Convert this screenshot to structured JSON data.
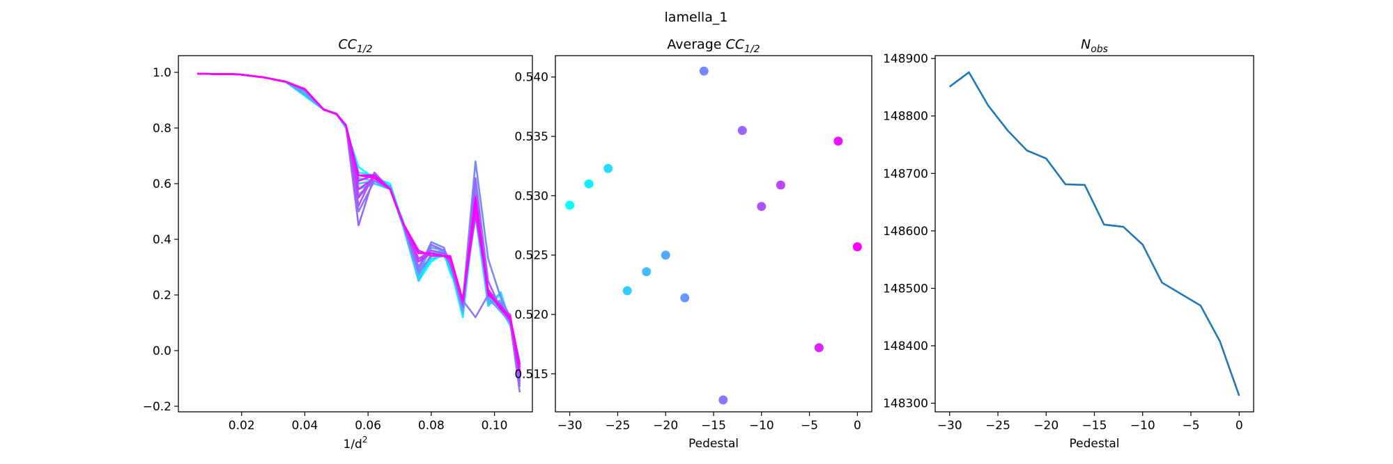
{
  "figure": {
    "suptitle": "lamella_1"
  },
  "chart_data": [
    {
      "type": "line",
      "title": "CC",
      "title_subscript": "1/2",
      "title_italic": true,
      "xlabel": "1/d",
      "xlabel_superscript": "2",
      "ylabel": "",
      "xlim": [
        0.0,
        0.112
      ],
      "ylim": [
        -0.22,
        1.06
      ],
      "xticks": [
        0.02,
        0.04,
        0.06,
        0.08,
        0.1
      ],
      "xtick_labels": [
        "0.02",
        "0.04",
        "0.06",
        "0.08",
        "0.10"
      ],
      "yticks": [
        -0.2,
        0.0,
        0.2,
        0.4,
        0.6,
        0.8,
        1.0
      ],
      "ytick_labels": [
        "−0.2",
        "0.0",
        "0.2",
        "0.4",
        "0.6",
        "0.8",
        "1.0"
      ],
      "colormap": "cool",
      "grid": false,
      "x": [
        0.006,
        0.019,
        0.027,
        0.034,
        0.04,
        0.046,
        0.05,
        0.053,
        0.057,
        0.062,
        0.067,
        0.071,
        0.076,
        0.08,
        0.084,
        0.086,
        0.09,
        0.094,
        0.098,
        0.102,
        0.105,
        0.108
      ],
      "series": [
        {
          "label": "-30",
          "values": [
            0.995,
            0.993,
            0.982,
            0.965,
            0.915,
            0.865,
            0.85,
            0.8,
            0.66,
            0.62,
            0.6,
            0.46,
            0.25,
            0.32,
            0.35,
            0.28,
            0.18,
            0.48,
            0.17,
            0.2,
            0.11,
            -0.04
          ]
        },
        {
          "label": "-28",
          "values": [
            0.995,
            0.993,
            0.982,
            0.966,
            0.92,
            0.866,
            0.852,
            0.8,
            0.64,
            0.63,
            0.59,
            0.45,
            0.26,
            0.33,
            0.34,
            0.3,
            0.12,
            0.52,
            0.2,
            0.15,
            0.09,
            -0.06
          ]
        },
        {
          "label": "-26",
          "values": [
            0.995,
            0.993,
            0.982,
            0.965,
            0.918,
            0.866,
            0.85,
            0.81,
            0.62,
            0.61,
            0.58,
            0.47,
            0.27,
            0.34,
            0.36,
            0.29,
            0.19,
            0.49,
            0.16,
            0.21,
            0.1,
            -0.05
          ]
        },
        {
          "label": "-24",
          "values": [
            0.995,
            0.993,
            0.982,
            0.966,
            0.925,
            0.868,
            0.851,
            0.8,
            0.58,
            0.6,
            0.58,
            0.45,
            0.25,
            0.35,
            0.36,
            0.3,
            0.15,
            0.54,
            0.18,
            0.15,
            0.1,
            -0.08
          ]
        },
        {
          "label": "-22",
          "values": [
            0.995,
            0.993,
            0.982,
            0.967,
            0.93,
            0.867,
            0.852,
            0.805,
            0.6,
            0.61,
            0.585,
            0.45,
            0.27,
            0.38,
            0.36,
            0.31,
            0.17,
            0.56,
            0.17,
            0.18,
            0.12,
            -0.1
          ]
        },
        {
          "label": "-20",
          "values": [
            0.995,
            0.993,
            0.982,
            0.966,
            0.92,
            0.866,
            0.851,
            0.808,
            0.58,
            0.62,
            0.58,
            0.46,
            0.28,
            0.37,
            0.36,
            0.33,
            0.16,
            0.6,
            0.2,
            0.16,
            0.11,
            -0.07
          ]
        },
        {
          "label": "-18",
          "values": [
            0.995,
            0.993,
            0.982,
            0.966,
            0.935,
            0.866,
            0.85,
            0.81,
            0.56,
            0.61,
            0.59,
            0.46,
            0.3,
            0.36,
            0.35,
            0.32,
            0.14,
            0.58,
            0.19,
            0.14,
            0.1,
            -0.09
          ]
        },
        {
          "label": "-16",
          "values": [
            0.995,
            0.993,
            0.982,
            0.967,
            0.94,
            0.866,
            0.85,
            0.81,
            0.55,
            0.62,
            0.58,
            0.46,
            0.29,
            0.39,
            0.37,
            0.31,
            0.18,
            0.68,
            0.33,
            0.19,
            0.12,
            -0.12
          ]
        },
        {
          "label": "-14",
          "values": [
            0.995,
            0.993,
            0.982,
            0.966,
            0.938,
            0.866,
            0.85,
            0.81,
            0.5,
            0.61,
            0.58,
            0.46,
            0.28,
            0.34,
            0.35,
            0.33,
            0.18,
            0.12,
            0.2,
            0.17,
            0.1,
            -0.15
          ]
        },
        {
          "label": "-12",
          "values": [
            0.995,
            0.993,
            0.982,
            0.966,
            0.94,
            0.866,
            0.85,
            0.81,
            0.45,
            0.63,
            0.58,
            0.46,
            0.3,
            0.38,
            0.36,
            0.32,
            0.17,
            0.62,
            0.25,
            0.15,
            0.13,
            -0.13
          ]
        },
        {
          "label": "-10",
          "values": [
            0.995,
            0.993,
            0.982,
            0.966,
            0.94,
            0.866,
            0.852,
            0.81,
            0.52,
            0.64,
            0.58,
            0.46,
            0.33,
            0.36,
            0.35,
            0.31,
            0.16,
            0.56,
            0.22,
            0.16,
            0.12,
            -0.11
          ]
        },
        {
          "label": "-8",
          "values": [
            0.995,
            0.993,
            0.982,
            0.966,
            0.938,
            0.866,
            0.85,
            0.81,
            0.55,
            0.63,
            0.58,
            0.46,
            0.33,
            0.35,
            0.34,
            0.33,
            0.17,
            0.51,
            0.21,
            0.15,
            0.11,
            -0.08
          ]
        },
        {
          "label": "-6",
          "values": [
            0.995,
            0.993,
            0.982,
            0.966,
            0.94,
            0.866,
            0.85,
            0.81,
            0.58,
            0.62,
            0.58,
            0.46,
            0.32,
            0.35,
            0.34,
            0.34,
            0.18,
            0.53,
            0.2,
            0.16,
            0.12,
            -0.07
          ]
        },
        {
          "label": "-4",
          "values": [
            0.995,
            0.993,
            0.982,
            0.966,
            0.938,
            0.866,
            0.85,
            0.81,
            0.61,
            0.63,
            0.58,
            0.46,
            0.36,
            0.34,
            0.34,
            0.33,
            0.18,
            0.49,
            0.22,
            0.15,
            0.11,
            -0.06
          ]
        },
        {
          "label": "-2",
          "values": [
            0.995,
            0.993,
            0.982,
            0.966,
            0.94,
            0.866,
            0.85,
            0.81,
            0.63,
            0.62,
            0.58,
            0.46,
            0.35,
            0.35,
            0.34,
            0.33,
            0.18,
            0.52,
            0.2,
            0.16,
            0.11,
            -0.08
          ]
        },
        {
          "label": "0",
          "values": [
            0.995,
            0.993,
            0.982,
            0.966,
            0.94,
            0.866,
            0.85,
            0.81,
            0.63,
            0.63,
            0.58,
            0.46,
            0.35,
            0.35,
            0.34,
            0.34,
            0.18,
            0.55,
            0.21,
            0.15,
            0.12,
            -0.05
          ]
        }
      ]
    },
    {
      "type": "scatter",
      "title": "Average CC",
      "title_subscript": "1/2",
      "title_italic_part": "CC",
      "xlabel": "Pedestal",
      "ylabel": "",
      "xlim": [
        -31.5,
        1.5
      ],
      "ylim": [
        0.5118,
        0.5418
      ],
      "xticks": [
        -30,
        -25,
        -20,
        -15,
        -10,
        -5,
        0
      ],
      "xtick_labels": [
        "−30",
        "−25",
        "−20",
        "−15",
        "−10",
        "−5",
        "0"
      ],
      "yticks": [
        0.515,
        0.52,
        0.525,
        0.53,
        0.535,
        0.54
      ],
      "ytick_labels": [
        "0.515",
        "0.520",
        "0.525",
        "0.530",
        "0.535",
        "0.540"
      ],
      "colormap": "cool",
      "grid": false,
      "points": [
        {
          "x": -30,
          "y": 0.5292
        },
        {
          "x": -28,
          "y": 0.531
        },
        {
          "x": -26,
          "y": 0.5323
        },
        {
          "x": -24,
          "y": 0.522
        },
        {
          "x": -22,
          "y": 0.5236
        },
        {
          "x": -20,
          "y": 0.525
        },
        {
          "x": -18,
          "y": 0.5214
        },
        {
          "x": -16,
          "y": 0.5405
        },
        {
          "x": -14,
          "y": 0.5128
        },
        {
          "x": -12,
          "y": 0.5355
        },
        {
          "x": -10,
          "y": 0.5291
        },
        {
          "x": -8,
          "y": 0.5309
        },
        {
          "x": -4,
          "y": 0.5172
        },
        {
          "x": -2,
          "y": 0.5346
        },
        {
          "x": 0,
          "y": 0.5257
        }
      ]
    },
    {
      "type": "line",
      "title": "N",
      "title_subscript": "obs",
      "title_italic": true,
      "xlabel": "Pedestal",
      "ylabel": "",
      "xlim": [
        -31.5,
        1.5
      ],
      "ylim": [
        148285,
        148905
      ],
      "xticks": [
        -30,
        -25,
        -20,
        -15,
        -10,
        -5,
        0
      ],
      "xtick_labels": [
        "−30",
        "−25",
        "−20",
        "−15",
        "−10",
        "−5",
        "0"
      ],
      "yticks": [
        148300,
        148400,
        148500,
        148600,
        148700,
        148800,
        148900
      ],
      "ytick_labels": [
        "148300",
        "148400",
        "148500",
        "148600",
        "148700",
        "148800",
        "148900"
      ],
      "line_color": "#1f77b4",
      "grid": false,
      "x": [
        -30,
        -28,
        -26,
        -24,
        -22,
        -20,
        -18,
        -16,
        -14,
        -12,
        -10,
        -8,
        -6,
        -4,
        -2,
        0
      ],
      "values": [
        148851,
        148876,
        148818,
        148775,
        148740,
        148726,
        148681,
        148680,
        148611,
        148607,
        148576,
        148510,
        148490,
        148470,
        148408,
        148313
      ]
    }
  ]
}
